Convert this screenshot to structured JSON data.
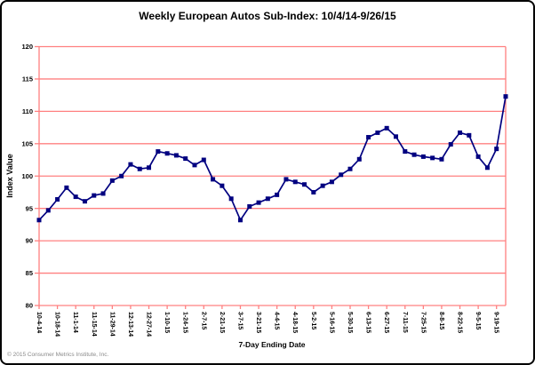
{
  "title": "Weekly European Autos Sub-Index: 10/4/14-9/26/15",
  "footer": {
    "copyright": "© 2015 Consumer Metrics Institute, Inc."
  },
  "chart_data": {
    "type": "line",
    "title": "Weekly European Autos Sub-Index: 10/4/14-9/26/15",
    "xlabel": "7-Day Ending Date",
    "ylabel": "Index Value",
    "ylim": [
      80,
      120
    ],
    "y_ticks": [
      80,
      85,
      90,
      95,
      100,
      105,
      110,
      115,
      120
    ],
    "x_tick_labels": [
      "10-4-14",
      "10-18-14",
      "11-1-14",
      "11-15-14",
      "11-29-14",
      "12-13-14",
      "12-27-14",
      "1-10-15",
      "1-24-15",
      "2-7-15",
      "2-21-15",
      "3-7-15",
      "3-21-15",
      "4-4-15",
      "4-18-15",
      "5-2-15",
      "5-16-15",
      "5-30-15",
      "6-13-15",
      "6-27-15",
      "7-11-15",
      "7-25-15",
      "8-8-15",
      "8-22-15",
      "9-5-15",
      "9-19-15"
    ],
    "x_tick_every": 2,
    "n_points": 52,
    "grid": "horizontal",
    "grid_color": "#FF8080",
    "axis_color": "#FF8080",
    "legend_position": "none",
    "series": [
      {
        "name": "Weekly European Autos Sub-Index",
        "color": "#000080",
        "marker": "square",
        "values": [
          93.2,
          94.7,
          96.4,
          98.2,
          96.8,
          96.1,
          97.0,
          97.3,
          99.3,
          100.0,
          101.8,
          101.1,
          101.3,
          103.8,
          103.5,
          103.2,
          102.7,
          101.7,
          102.5,
          99.5,
          98.5,
          96.5,
          93.2,
          95.3,
          95.9,
          96.5,
          97.1,
          99.5,
          99.1,
          98.7,
          97.5,
          98.5,
          99.1,
          100.2,
          101.1,
          102.6,
          106.0,
          106.7,
          107.4,
          106.1,
          103.8,
          103.3,
          103.0,
          102.8,
          102.6,
          104.9,
          106.7,
          106.3,
          103.0,
          101.3,
          104.2,
          112.3
        ]
      }
    ]
  }
}
